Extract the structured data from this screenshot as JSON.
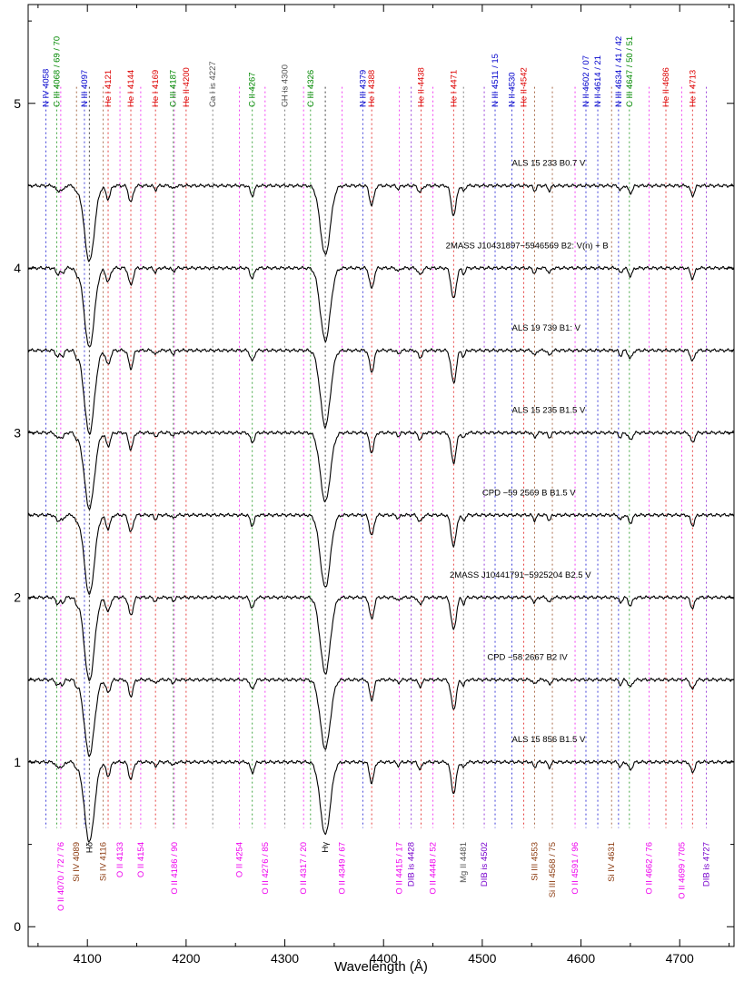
{
  "chart_data": {
    "type": "line",
    "xlabel": "Wavelength (Å)",
    "ylabel": "",
    "xlim": [
      4040,
      4755
    ],
    "ylim": [
      -0.12,
      5.6
    ],
    "xticks": [
      4100,
      4200,
      4300,
      4400,
      4500,
      4600,
      4700
    ],
    "yticks": [
      0,
      1,
      2,
      3,
      4,
      5
    ],
    "spectra": [
      {
        "name": "ALS 15 233   B0.7 V",
        "offset": 4.5,
        "label_x": 4530,
        "label_y": 4.62
      },
      {
        "name": "2MASS J10431897−5946569   B2: V(n) + B",
        "offset": 4.0,
        "label_x": 4463,
        "label_y": 4.12
      },
      {
        "name": "ALS 19 739   B1: V",
        "offset": 3.5,
        "label_x": 4530,
        "label_y": 3.62
      },
      {
        "name": "ALS 15 235   B1.5 V",
        "offset": 3.0,
        "label_x": 4530,
        "label_y": 3.12
      },
      {
        "name": "CPD −59 2569 B   B1.5 V",
        "offset": 2.5,
        "label_x": 4500,
        "label_y": 2.62
      },
      {
        "name": "2MASS J10441791−5925204   B2.5 V",
        "offset": 2.0,
        "label_x": 4467,
        "label_y": 2.12
      },
      {
        "name": "CPD −58 2667   B2 IV",
        "offset": 1.5,
        "label_x": 4505,
        "label_y": 1.62
      },
      {
        "name": "ALS 15 856   B1.5 V",
        "offset": 1.0,
        "label_x": 4530,
        "label_y": 1.12
      }
    ],
    "top_lines": [
      {
        "label": "N IV 4058",
        "x": 4058,
        "color": "#0000cc"
      },
      {
        "label": "C III 4068 / 69 / 70",
        "x": 4069,
        "color": "#008800"
      },
      {
        "label": "N III 4097",
        "x": 4097,
        "color": "#0000cc"
      },
      {
        "label": "He I 4121",
        "x": 4121,
        "color": "#dd0000"
      },
      {
        "label": "He I 4144",
        "x": 4144,
        "color": "#dd0000"
      },
      {
        "label": "He I 4169",
        "x": 4169,
        "color": "#dd0000"
      },
      {
        "label": "C III 4187",
        "x": 4187,
        "color": "#008800"
      },
      {
        "label": "He II 4200",
        "x": 4200,
        "color": "#dd0000"
      },
      {
        "label": "Ca I is 4227",
        "x": 4227,
        "color": "#555555"
      },
      {
        "label": "C II 4267",
        "x": 4267,
        "color": "#008800"
      },
      {
        "label": "CH is 4300",
        "x": 4300,
        "color": "#555555"
      },
      {
        "label": "C III 4326",
        "x": 4326,
        "color": "#008800"
      },
      {
        "label": "N III 4379",
        "x": 4379,
        "color": "#0000cc"
      },
      {
        "label": "He I 4388",
        "x": 4388,
        "color": "#dd0000"
      },
      {
        "label": "He II 4438",
        "x": 4438,
        "color": "#dd0000"
      },
      {
        "label": "He I 4471",
        "x": 4471,
        "color": "#dd0000"
      },
      {
        "label": "N III 4511 / 15",
        "x": 4513,
        "color": "#0000cc"
      },
      {
        "label": "N II 4530",
        "x": 4530,
        "color": "#0000cc"
      },
      {
        "label": "He II 4542",
        "x": 4542,
        "color": "#dd0000"
      },
      {
        "label": "N II 4602 / 07",
        "x": 4605,
        "color": "#0000cc"
      },
      {
        "label": "N II 4614 / 21",
        "x": 4617,
        "color": "#0000cc"
      },
      {
        "label": "N III 4634 / 41 / 42",
        "x": 4638,
        "color": "#0000cc"
      },
      {
        "label": "C III 4647 / 50 / 51",
        "x": 4649,
        "color": "#008800"
      },
      {
        "label": "He II 4686",
        "x": 4686,
        "color": "#dd0000"
      },
      {
        "label": "He I 4713",
        "x": 4713,
        "color": "#dd0000"
      }
    ],
    "bottom_lines": [
      {
        "label": "O II 4070 / 72 / 76",
        "x": 4073,
        "color": "#ee00ee"
      },
      {
        "label": "Si IV 4089",
        "x": 4089,
        "color": "#8b3a0f"
      },
      {
        "label": "Hδ",
        "x": 4102,
        "color": "#000000"
      },
      {
        "label": "Si IV 4116",
        "x": 4116,
        "color": "#8b3a0f"
      },
      {
        "label": "O II 4133",
        "x": 4133,
        "color": "#ee00ee"
      },
      {
        "label": "O II 4154",
        "x": 4154,
        "color": "#ee00ee"
      },
      {
        "label": "O II 4186 / 90",
        "x": 4188,
        "color": "#ee00ee"
      },
      {
        "label": "O II 4254",
        "x": 4254,
        "color": "#ee00ee"
      },
      {
        "label": "O II 4276 / 85",
        "x": 4280,
        "color": "#ee00ee"
      },
      {
        "label": "O II 4317 / 20",
        "x": 4319,
        "color": "#ee00ee"
      },
      {
        "label": "Hγ",
        "x": 4341,
        "color": "#000000"
      },
      {
        "label": "O II 4349 / 67",
        "x": 4358,
        "color": "#ee00ee"
      },
      {
        "label": "O II 4415 / 17",
        "x": 4416,
        "color": "#ee00ee"
      },
      {
        "label": "DIB is 4428",
        "x": 4428,
        "color": "#7700cc"
      },
      {
        "label": "O II 4448 / 52",
        "x": 4450,
        "color": "#ee00ee"
      },
      {
        "label": "Mg II 4481",
        "x": 4481,
        "color": "#555555"
      },
      {
        "label": "DIB is 4502",
        "x": 4502,
        "color": "#7700cc"
      },
      {
        "label": "Si III 4553",
        "x": 4553,
        "color": "#8b3a0f"
      },
      {
        "label": "Si III 4568 / 75",
        "x": 4571,
        "color": "#8b3a0f"
      },
      {
        "label": "O II 4591 / 96",
        "x": 4594,
        "color": "#ee00ee"
      },
      {
        "label": "Si IV 4631",
        "x": 4631,
        "color": "#8b3a0f"
      },
      {
        "label": "O II 4662 / 76",
        "x": 4669,
        "color": "#ee00ee"
      },
      {
        "label": "O II 4699 / 705",
        "x": 4702,
        "color": "#ee00ee"
      },
      {
        "label": "DIB is 4727",
        "x": 4727,
        "color": "#7700cc"
      }
    ],
    "absorption_lines": [
      {
        "x": 4102,
        "depth": 0.46,
        "width": 5
      },
      {
        "x": 4341,
        "depth": 0.42,
        "width": 5
      },
      {
        "x": 4471,
        "depth": 0.18,
        "width": 2.5
      },
      {
        "x": 4388,
        "depth": 0.12,
        "width": 2.2
      },
      {
        "x": 4144,
        "depth": 0.1,
        "width": 2.2
      },
      {
        "x": 4121,
        "depth": 0.08,
        "width": 2.2
      },
      {
        "x": 4267,
        "depth": 0.06,
        "width": 2
      },
      {
        "x": 4713,
        "depth": 0.06,
        "width": 2
      },
      {
        "x": 4026,
        "depth": 0.15,
        "width": 2.5
      },
      {
        "x": 4437,
        "depth": 0.04,
        "width": 2
      },
      {
        "x": 4481,
        "depth": 0.035,
        "width": 1.5
      },
      {
        "x": 4553,
        "depth": 0.03,
        "width": 1.5
      },
      {
        "x": 4568,
        "depth": 0.03,
        "width": 1.5
      },
      {
        "x": 4650,
        "depth": 0.045,
        "width": 2
      },
      {
        "x": 4070,
        "depth": 0.035,
        "width": 2
      },
      {
        "x": 4089,
        "depth": 0.03,
        "width": 1.5
      },
      {
        "x": 4169,
        "depth": 0.025,
        "width": 1.5
      },
      {
        "x": 4187,
        "depth": 0.02,
        "width": 1.5
      },
      {
        "x": 4415,
        "depth": 0.02,
        "width": 1.5
      },
      {
        "x": 4640,
        "depth": 0.03,
        "width": 1.5
      },
      {
        "x": 4075,
        "depth": 0.03,
        "width": 1.5
      }
    ]
  }
}
